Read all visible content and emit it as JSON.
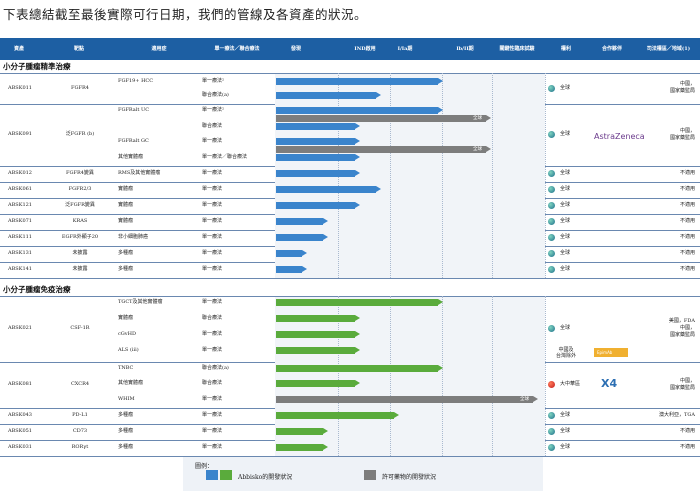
{
  "intro": "下表總結截至最後實際可行日期，我們的管線及各資產的狀況。",
  "header": {
    "asset": "資產",
    "target": "靶點",
    "indication": "適用症",
    "regimen": "單一療法／聯合療法",
    "discovery": "發現",
    "ind": "IND啟用",
    "phase1": "I/Ia期",
    "phase2": "Ib/II期",
    "pivotal": "關鍵性臨床試驗",
    "rights": "權利",
    "partner": "合作夥伴",
    "regulatory": "司法權區／地域(1)"
  },
  "sections": {
    "precision": "小分子腫瘤精準治療",
    "immuno": "小分子腫瘤免疫治療"
  },
  "rows": [
    {
      "asset": "ABSK011",
      "target": "FGFR4",
      "indication": "FGF19+ HCC",
      "regimen": "單一療法²",
      "rights": "全球",
      "regulatory": "中國，\n國家藥監局",
      "color": "blue",
      "stage": 0.62,
      "bar_label": ""
    },
    {
      "asset": "",
      "target": "",
      "indication": "",
      "regimen": "聯合療法(a)",
      "rights": "",
      "regulatory": "",
      "color": "blue",
      "stage": 0.38,
      "bar_label": ""
    },
    {
      "asset": "ABSK091",
      "target": "泛FGFR (b)",
      "indication": "FGFRalt UC",
      "regimen": "單一療法²",
      "rights": "全球",
      "regulatory": "中國，\n國家藥監局",
      "color": "blue",
      "stage": 0.62,
      "bar_label": ""
    },
    {
      "asset": "",
      "target": "",
      "indication": "",
      "regimen": "",
      "rights": "",
      "regulatory": "",
      "color": "gray",
      "stage": 0.8,
      "bar_label": "全球"
    },
    {
      "asset": "",
      "target": "",
      "indication": "",
      "regimen": "聯合療法",
      "rights": "",
      "regulatory": "",
      "color": "blue",
      "stage": 0.3,
      "bar_label": ""
    },
    {
      "asset": "",
      "target": "",
      "indication": "FGFRalt GC",
      "regimen": "單一療法",
      "rights": "",
      "regulatory": "",
      "color": "blue",
      "stage": 0.3,
      "bar_label": ""
    },
    {
      "asset": "",
      "target": "",
      "indication": "",
      "regimen": "",
      "rights": "",
      "regulatory": "",
      "color": "gray",
      "stage": 0.8,
      "bar_label": "全球"
    },
    {
      "asset": "",
      "target": "",
      "indication": "其他實體瘤",
      "regimen": "單一療法／聯合療法",
      "rights": "",
      "regulatory": "",
      "color": "blue",
      "stage": 0.3,
      "bar_label": ""
    },
    {
      "asset": "ABSK012",
      "target": "FGFR4變異",
      "indication": "RMS及其他實體瘤",
      "regimen": "單一療法",
      "rights": "全球",
      "regulatory": "不適用",
      "color": "blue",
      "stage": 0.3,
      "bar_label": ""
    },
    {
      "asset": "ABSK061",
      "target": "FGFR2/3",
      "indication": "實體瘤",
      "regimen": "單一療法",
      "rights": "全球",
      "regulatory": "不適用",
      "color": "blue",
      "stage": 0.38,
      "bar_label": ""
    },
    {
      "asset": "ABSK121",
      "target": "泛FGFR變異",
      "indication": "實體瘤",
      "regimen": "單一療法",
      "rights": "全球",
      "regulatory": "不適用",
      "color": "blue",
      "stage": 0.3,
      "bar_label": ""
    },
    {
      "asset": "ABSK071",
      "target": "KRAS",
      "indication": "實體瘤",
      "regimen": "單一療法",
      "rights": "全球",
      "regulatory": "不適用",
      "color": "blue",
      "stage": 0.18,
      "bar_label": ""
    },
    {
      "asset": "ABSK111",
      "target": "EGFR外顯子20",
      "indication": "非小細胞肺癌",
      "regimen": "單一療法",
      "rights": "全球",
      "regulatory": "不適用",
      "color": "blue",
      "stage": 0.18,
      "bar_label": ""
    },
    {
      "asset": "ABSK131",
      "target": "未披露",
      "indication": "多種瘤",
      "regimen": "單一療法",
      "rights": "全球",
      "regulatory": "不適用",
      "color": "blue",
      "stage": 0.1,
      "bar_label": ""
    },
    {
      "asset": "ABSK141",
      "target": "未披露",
      "indication": "多種瘤",
      "regimen": "單一療法",
      "rights": "全球",
      "regulatory": "不適用",
      "color": "blue",
      "stage": 0.1,
      "bar_label": ""
    },
    {
      "asset": "ABSK021",
      "target": "CSF-1R",
      "indication": "TGCT及其他實體瘤",
      "regimen": "單一療法",
      "rights": "全球",
      "regulatory": "美國，FDA\n中國，\n國家藥監局",
      "color": "green",
      "stage": 0.62,
      "bar_label": ""
    },
    {
      "asset": "",
      "target": "",
      "indication": "實體瘤",
      "regimen": "聯合療法",
      "rights": "",
      "regulatory": "",
      "color": "green",
      "stage": 0.3,
      "bar_label": ""
    },
    {
      "asset": "",
      "target": "",
      "indication": "cGvHD",
      "regimen": "單一療法",
      "rights": "中國及\n台灣除外",
      "regulatory": "",
      "color": "green",
      "stage": 0.3,
      "bar_label": ""
    },
    {
      "asset": "",
      "target": "",
      "indication": "ALS (iii)",
      "regimen": "單一療法",
      "rights": "",
      "regulatory": "",
      "color": "green",
      "stage": 0.3,
      "bar_label": ""
    },
    {
      "asset": "ABSK081",
      "target": "CXCR4",
      "indication": "TNBC",
      "regimen": "聯合療法(a)",
      "rights": "大中華區",
      "regulatory": "中國，\n國家藥監局",
      "color": "green",
      "stage": 0.62,
      "bar_label": ""
    },
    {
      "asset": "",
      "target": "",
      "indication": "其他實體瘤",
      "regimen": "聯合療法",
      "rights": "",
      "regulatory": "",
      "color": "green",
      "stage": 0.3,
      "bar_label": ""
    },
    {
      "asset": "",
      "target": "",
      "indication": "WHIM",
      "regimen": "單一療法",
      "rights": "",
      "regulatory": "",
      "color": "gray",
      "stage": 0.98,
      "bar_label": "全球"
    },
    {
      "asset": "ABSK043",
      "target": "PD-L1",
      "indication": "多種瘤",
      "regimen": "單一療法",
      "rights": "全球",
      "regulatory": "澳大利亞，TGA",
      "color": "green",
      "stage": 0.45,
      "bar_label": ""
    },
    {
      "asset": "ABSK051",
      "target": "CD73",
      "indication": "多種瘤",
      "regimen": "單一療法",
      "rights": "全球",
      "regulatory": "不適用",
      "color": "green",
      "stage": 0.18,
      "bar_label": ""
    },
    {
      "asset": "ABSK031",
      "target": "RORγt",
      "indication": "多種瘤",
      "regimen": "單一療法",
      "rights": "全球",
      "regulatory": "不適用",
      "color": "green",
      "stage": 0.18,
      "bar_label": ""
    }
  ],
  "partners": {
    "astrazeneca": "AstraZeneca",
    "x4": "X4",
    "eparmy": "EpimAb"
  },
  "legend": {
    "title": "圖例：",
    "abbisko": "Abbisko的開發狀況",
    "licensed": "許可藥物的開發狀況"
  },
  "colors": {
    "header": "#1d5fa3",
    "blue": "#3a84cc",
    "green": "#5aab3c",
    "gray": "#7d7d7d"
  }
}
